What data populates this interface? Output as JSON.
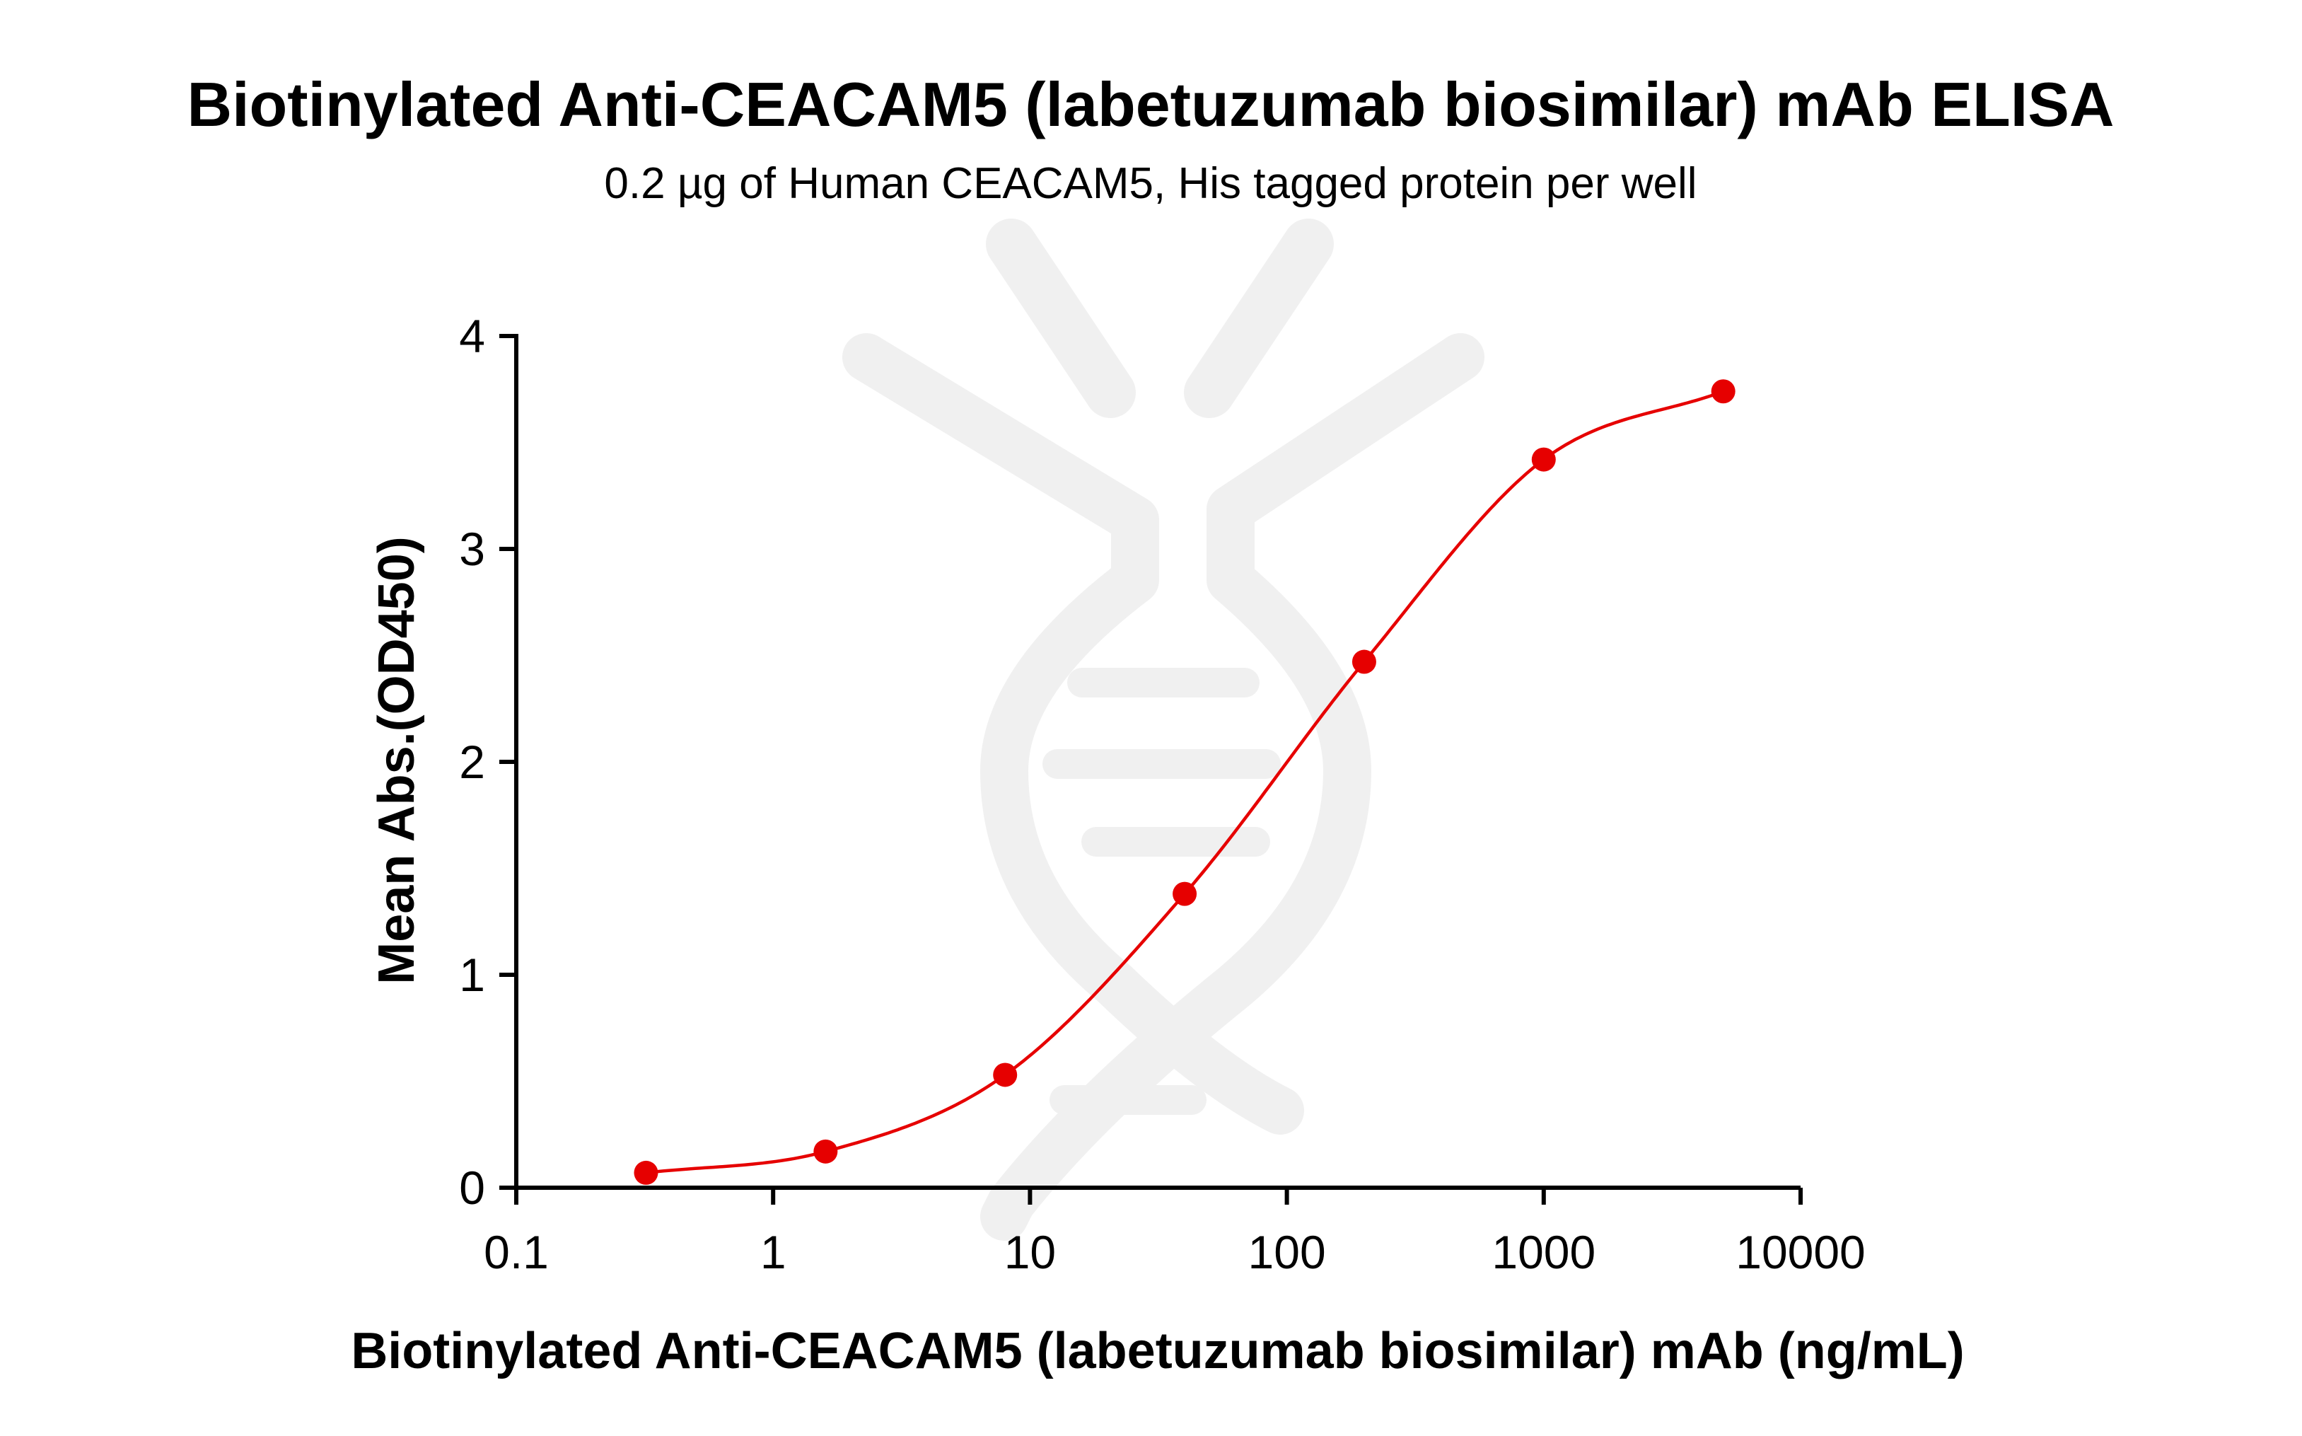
{
  "chart_data": {
    "type": "scatter",
    "title": "Biotinylated Anti-CEACAM5 (labetuzumab biosimilar) mAb ELISA",
    "subtitle": "0.2 µg of Human CEACAM5, His tagged protein per well",
    "xlabel": "Biotinylated Anti-CEACAM5 (labetuzumab biosimilar) mAb (ng/mL)",
    "ylabel": "Mean Abs.(OD450)",
    "x_scale": "log",
    "xlim": [
      0.1,
      10000
    ],
    "ylim": [
      0,
      4
    ],
    "x_ticks": [
      0.1,
      1,
      10,
      100,
      1000,
      10000
    ],
    "x_tick_labels": [
      "0.1",
      "1",
      "10",
      "100",
      "1000",
      "10000"
    ],
    "y_ticks": [
      0,
      1,
      2,
      3,
      4
    ],
    "y_tick_labels": [
      "0",
      "1",
      "2",
      "3",
      "4"
    ],
    "grid": false,
    "series": [
      {
        "x": [
          0.32,
          1.6,
          8,
          40,
          200,
          1000,
          5000
        ],
        "y": [
          0.07,
          0.17,
          0.53,
          1.38,
          2.47,
          3.42,
          3.74
        ],
        "color": "#e60000",
        "fit": "four-parameter logistic curve"
      }
    ],
    "watermark": "antibody-logo"
  }
}
